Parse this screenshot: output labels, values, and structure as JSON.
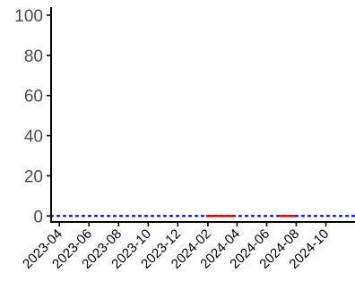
{
  "chart_data": {
    "type": "line",
    "title": "",
    "xlabel": "",
    "ylabel": "",
    "x_ticks": [
      "2023-04",
      "2023-06",
      "2023-08",
      "2023-10",
      "2023-12",
      "2024-02",
      "2024-04",
      "2024-06",
      "2024-08",
      "2024-10"
    ],
    "y_ticks": [
      0,
      20,
      40,
      60,
      80,
      100
    ],
    "xlim": [
      "2023-03-15",
      "2024-11-30"
    ],
    "ylim": [
      -3,
      104
    ],
    "grid": false,
    "legend": "none",
    "reference_lines": [
      {
        "y": 0,
        "style": "dotted",
        "color": "#0000ff"
      }
    ],
    "series": [
      {
        "color": "#cc0000",
        "segments": [
          {
            "x": [
              "2024-01-28",
              "2024-03-28"
            ],
            "y": [
              0,
              0
            ]
          },
          {
            "x": [
              "2024-06-25",
              "2024-07-31"
            ],
            "y": [
              0,
              0
            ]
          }
        ]
      }
    ],
    "colors": {
      "axis": "#000000",
      "tick_label": "#4d4d4d",
      "series": "#cc0000",
      "reference": "#0000ff"
    }
  }
}
